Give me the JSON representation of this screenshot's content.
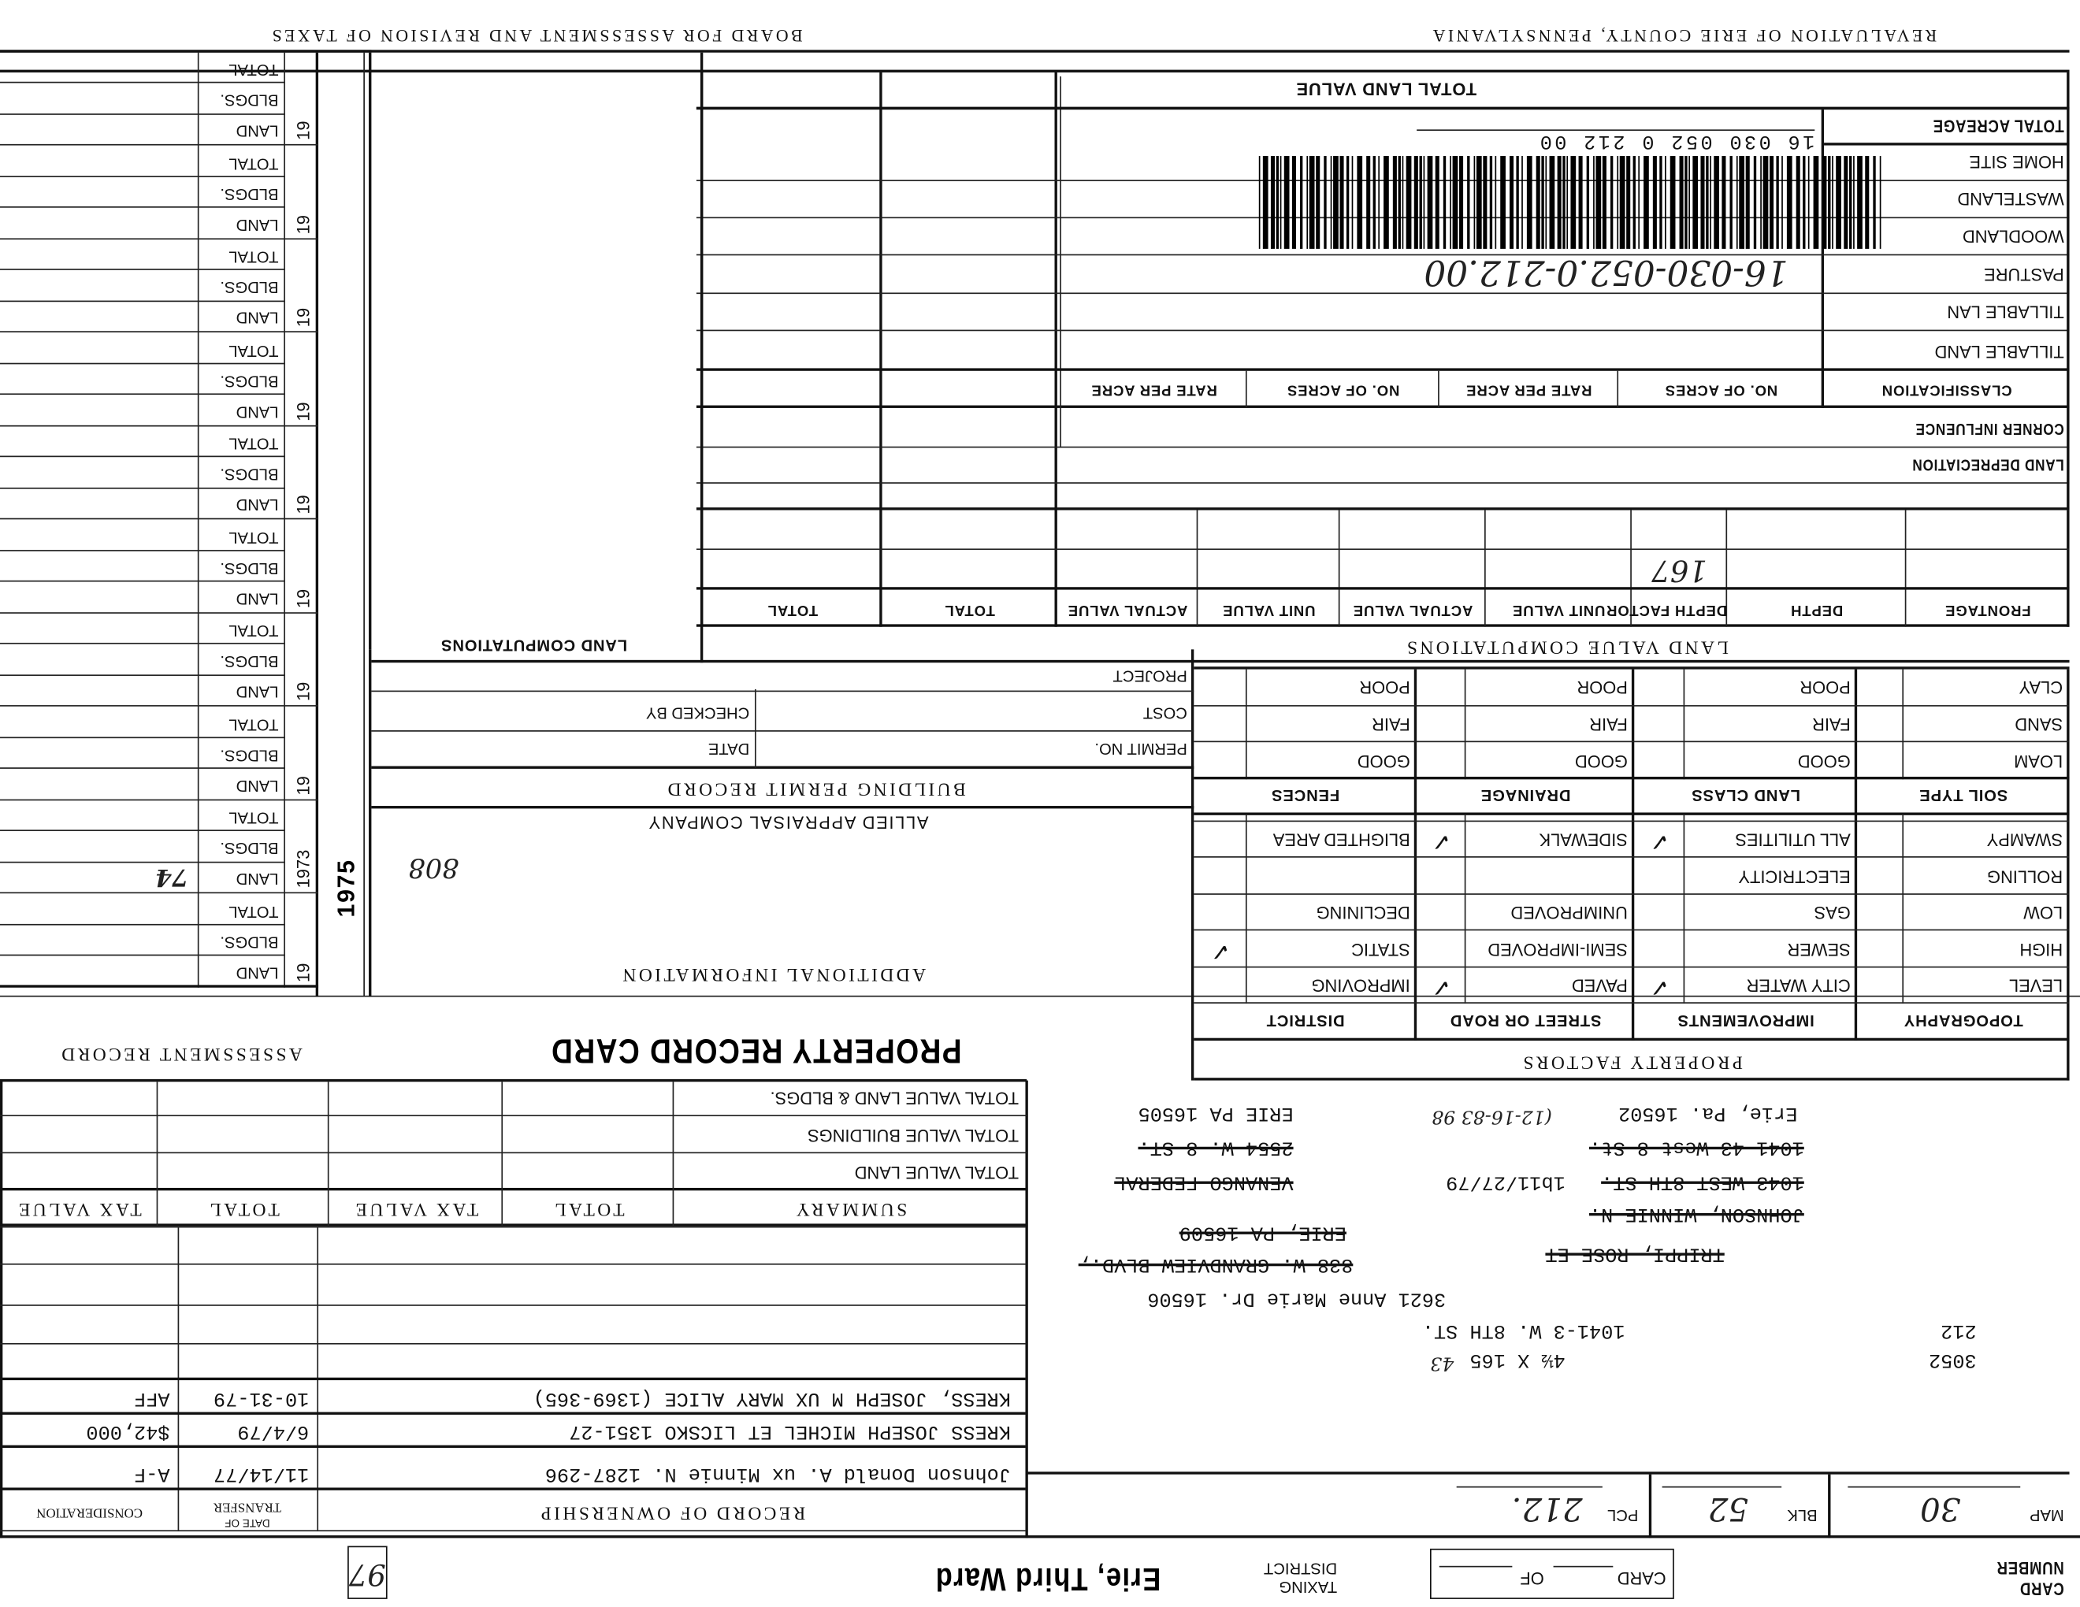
{
  "header": {
    "card_number_label": [
      "CARD",
      "NUMBER"
    ],
    "card_label": "CARD",
    "of_label": "OF",
    "taxing_district_label": [
      "TAXING",
      "DISTRICT"
    ],
    "taxing_district": "Erie, Third Ward",
    "box_number": "97"
  },
  "parcel": {
    "map_label": "MAP",
    "map": "30",
    "blk_label": "BLK",
    "blk": "52",
    "pcl_label": "PCL",
    "pcl": "212."
  },
  "address_lines": [
    {
      "text": "3052",
      "struck": false,
      "hand": false
    },
    {
      "text": "4½ X 165",
      "struck": false,
      "hand": false
    },
    {
      "text": "43",
      "struck": false,
      "hand": true
    },
    {
      "text": "212",
      "struck": false,
      "hand": false
    },
    {
      "text": "1041-3 W. 8TH ST.",
      "struck": false,
      "hand": false
    },
    {
      "text": "3621 Anne Marie Dr. 16506",
      "struck": false,
      "hand": false
    },
    {
      "text": "TRIPPI, ROSE ET",
      "struck": true,
      "hand": false
    },
    {
      "text": "838 W. GRANDVIEW BLVD.,",
      "struck": true,
      "hand": false
    },
    {
      "text": "ERIE, PA 16509",
      "struck": true,
      "hand": false
    },
    {
      "text": "JOHNSON, WINNIE N.",
      "struck": true,
      "hand": false
    },
    {
      "text": "1043 WEST 8TH ST.",
      "struck": true,
      "hand": false
    },
    {
      "text": "1b11/27/79",
      "struck": false,
      "hand": false
    },
    {
      "text": "VENANGO FEDERAL",
      "struck": true,
      "hand": false
    },
    {
      "text": "1041-43 West 8 St.",
      "struck": true,
      "hand": false
    },
    {
      "text": "2554 W. 8 ST.",
      "struck": true,
      "hand": false
    },
    {
      "text": "Erie, Pa. 16502",
      "struck": false,
      "hand": false
    },
    {
      "text": "(12-16-83 98",
      "struck": false,
      "hand": true
    },
    {
      "text": "ERIE PA 16505",
      "struck": false,
      "hand": false
    }
  ],
  "ownership": {
    "title": "RECORD OF OWNERSHIP",
    "date_label": [
      "DATE OF",
      "TRANSFER"
    ],
    "consideration_label": "CONSIDERATION",
    "rows": [
      {
        "name": "Johnson Donald A. ux Minnie N. 1287-296",
        "date": "11/14/77",
        "consideration": "A-F"
      },
      {
        "name": "KRESS JOSEPH MICHEL ET LICSKO 1351-27",
        "date": "6/4/79",
        "consideration": "$42,000"
      },
      {
        "name": "KRESS, JOSEPH M UX MARY ALICE (1369-365)",
        "date": "10-31-79",
        "consideration": "AFF"
      }
    ]
  },
  "summary": {
    "headers": [
      "SUMMARY",
      "TOTAL",
      "TAX VALUE",
      "TOTAL",
      "TAX VALUE"
    ],
    "rows": [
      "TOTAL VALUE LAND",
      "TOTAL VALUE BUILDINGS",
      "TOTAL VALUE LAND & BLDGS."
    ]
  },
  "titles": {
    "property_record_card": "PROPERTY RECORD CARD",
    "assessment_record": "ASSESSMENT RECORD",
    "property_factors": "PROPERTY FACTORS",
    "additional_information": "ADDITIONAL INFORMATION",
    "allied": "ALLIED APPRAISAL COMPANY",
    "building_permit_record": "BUILDING PERMIT RECORD",
    "land_value_computations": "LAND VALUE COMPUTATIONS",
    "land_computations": "LAND COMPUTATIONS",
    "total_land_value": "TOTAL LAND VALUE",
    "revaluation": "REVALUATION OF ERIE COUNTY, PENNSYLVANIA",
    "board": "BOARD FOR ASSESSMENT AND REVISION OF TAXES"
  },
  "additional_info_notes": [
    "808"
  ],
  "building_permit": {
    "permit_no": "PERMIT NO.",
    "date": "DATE",
    "cost": "COST",
    "checked_by": "CHECKED BY",
    "project": "PROJECT"
  },
  "property_factors": {
    "headers": [
      "TOPOGRAPHY",
      "IMPROVEMENTS",
      "STREET OR ROAD",
      "DISTRICT"
    ],
    "rows": [
      [
        {
          "label": "LEVEL",
          "checked": false
        },
        {
          "label": "CITY WATER",
          "checked": true
        },
        {
          "label": "PAVED",
          "checked": true
        },
        {
          "label": "IMPROVING",
          "checked": false
        }
      ],
      [
        {
          "label": "HIGH",
          "checked": false
        },
        {
          "label": "SEWER",
          "checked": false
        },
        {
          "label": "SEMI-IMPROVED",
          "checked": false
        },
        {
          "label": "STATIC",
          "checked": true
        }
      ],
      [
        {
          "label": "LOW",
          "checked": false
        },
        {
          "label": "GAS",
          "checked": false
        },
        {
          "label": "UNIMPROVED",
          "checked": false
        },
        {
          "label": "DECLINING",
          "checked": false
        }
      ],
      [
        {
          "label": "ROLLING",
          "checked": false
        },
        {
          "label": "ELECTRICITY",
          "checked": false
        },
        {
          "label": "",
          "checked": false
        },
        {
          "label": "",
          "checked": false
        }
      ],
      [
        {
          "label": "SWAMPY",
          "checked": false
        },
        {
          "label": "ALL UTILITIES",
          "checked": true
        },
        {
          "label": "SIDEWALK",
          "checked": true
        },
        {
          "label": "BLIGHTED AREA",
          "checked": false
        }
      ]
    ],
    "soil_headers": [
      "SOIL TYPE",
      "LAND CLASS",
      "DRAINAGE",
      "FENCES"
    ],
    "soil_rows": [
      [
        "LOAM",
        "GOOD",
        "GOOD",
        "GOOD"
      ],
      [
        "SAND",
        "FAIR",
        "FAIR",
        "FAIR"
      ],
      [
        "CLAY",
        "POOR",
        "POOR",
        "POOR"
      ]
    ]
  },
  "land_value": {
    "headers": [
      "FRONTAGE",
      "DEPTH",
      "DEPTH FACTOR",
      "UNIT VALUE",
      "ACTUAL VALUE",
      "UNIT VALUE",
      "ACTUAL VALUE",
      "TOTAL",
      "TOTAL"
    ],
    "row": [
      "",
      "",
      "167",
      "",
      "",
      "",
      "",
      "",
      ""
    ]
  },
  "land_rows": {
    "depreciation": "LAND DEPRECIATION",
    "corner": "CORNER INFLUENCE",
    "classification_headers": [
      "CLASSIFICATION",
      "NO. OF ACRES",
      "RATE PER ACRE",
      "NO. OF ACRES",
      "RATE PER ACRE"
    ],
    "classes": [
      "TILLABLE LAND",
      "TILLABLE LAN",
      "PASTURE",
      "WOODLAND",
      "WASTELAND",
      "HOME SITE",
      "TOTAL ACREAGE"
    ]
  },
  "barcode": {
    "printed": "16 030 052 0 212 00",
    "handwritten": "16-030-052.0-212.00"
  },
  "assessment": {
    "labels": [
      "LAND",
      "BLDGS.",
      "TOTAL"
    ],
    "years": [
      "19",
      "1973",
      "19",
      "19",
      "19",
      "19",
      "19",
      "19",
      "19",
      "19"
    ],
    "notes": {
      "land_1973": "74",
      "side_1975": "1975"
    }
  }
}
